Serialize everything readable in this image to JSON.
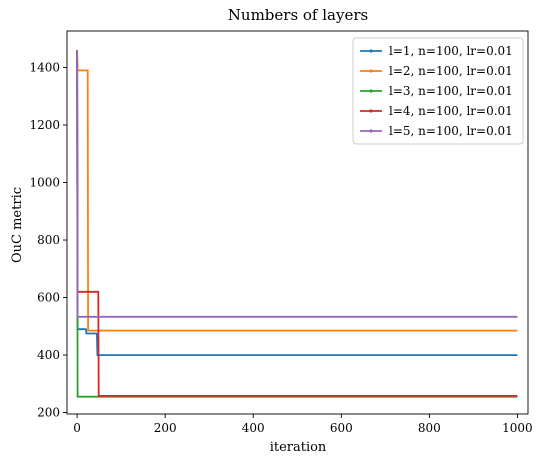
{
  "chart_data": {
    "type": "line",
    "title": "Numbers of layers",
    "xlabel": "iteration",
    "ylabel": "OuC metric",
    "xlim": [
      -23,
      1024
    ],
    "ylim": [
      195,
      1527
    ],
    "xticks": [
      0,
      200,
      400,
      600,
      800,
      1000
    ],
    "yticks": [
      200,
      400,
      600,
      800,
      1000,
      1200,
      1400
    ],
    "grid": false,
    "legend_position": "top-right",
    "series": [
      {
        "name": "l=1, n=100, lr=0.01",
        "color": "#1f77b4",
        "points": [
          [
            0,
            1460
          ],
          [
            1,
            490
          ],
          [
            20,
            490
          ],
          [
            21,
            475
          ],
          [
            45,
            475
          ],
          [
            46,
            400
          ],
          [
            1000,
            400
          ]
        ]
      },
      {
        "name": "l=2, n=100, lr=0.01",
        "color": "#ff7f0e",
        "points": [
          [
            0,
            1460
          ],
          [
            1,
            1390
          ],
          [
            24,
            1390
          ],
          [
            25,
            485
          ],
          [
            1000,
            485
          ]
        ]
      },
      {
        "name": "l=3, n=100, lr=0.01",
        "color": "#2ca02c",
        "points": [
          [
            0,
            1460
          ],
          [
            1,
            255
          ],
          [
            1000,
            255
          ]
        ]
      },
      {
        "name": "l=4, n=100, lr=0.01",
        "color": "#d62728",
        "points": [
          [
            0,
            1460
          ],
          [
            1,
            620
          ],
          [
            48,
            620
          ],
          [
            49,
            258
          ],
          [
            1000,
            258
          ]
        ]
      },
      {
        "name": "l=5, n=100, lr=0.01",
        "color": "#9467bd",
        "points": [
          [
            0,
            1460
          ],
          [
            1,
            533
          ],
          [
            1000,
            533
          ]
        ]
      }
    ]
  }
}
